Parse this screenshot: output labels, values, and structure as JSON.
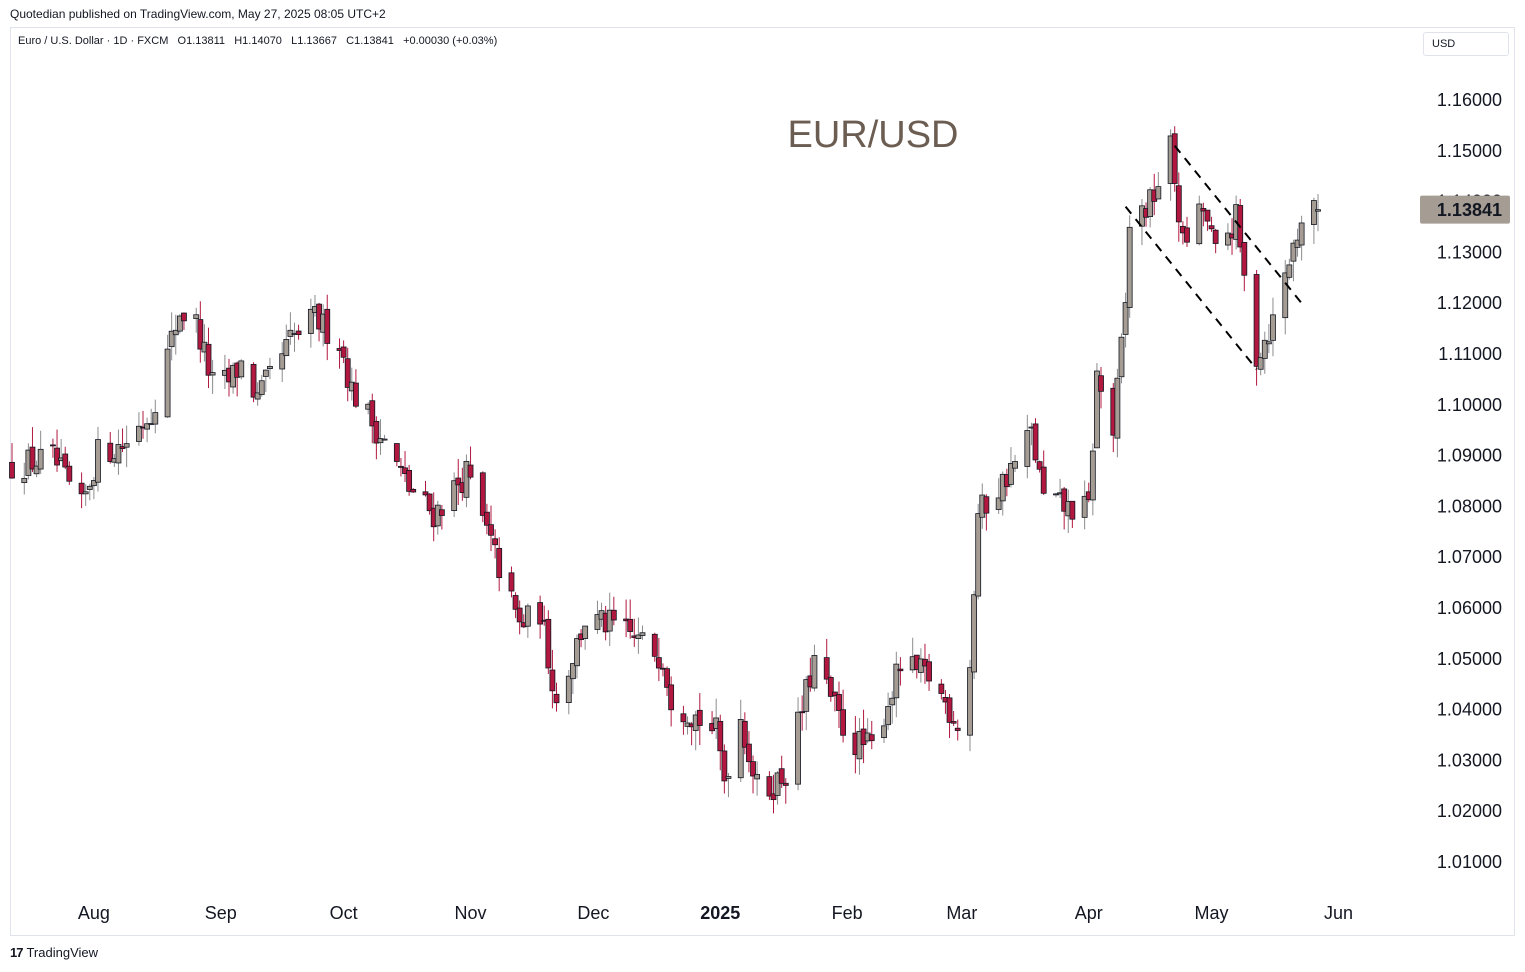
{
  "header": {
    "publisher_line": "Quotedian published on TradingView.com, May 27, 2025 08:05 UTC+2"
  },
  "legend": {
    "symbol": "Euro / U.S. Dollar · 1D · FXCM",
    "open": "O1.13811",
    "high": "H1.14070",
    "low": "L1.13667",
    "close": "C1.13841",
    "change": "+0.00030 (+0.03%)"
  },
  "currency_button": "USD",
  "footer": {
    "brand": "TradingView",
    "logo": "17"
  },
  "colors": {
    "up": "#a59c94",
    "down": "#b2183f",
    "outline": "#131722",
    "price_tag": "#a59c94",
    "title": "#6b5d52"
  },
  "chart_data": {
    "type": "candlestick",
    "title": "EUR/USD",
    "ylim": [
      1.003,
      1.17
    ],
    "y_ticks": [
      "1.16000",
      "1.15000",
      "1.13000",
      "1.12000",
      "1.11000",
      "1.10000",
      "1.09000",
      "1.08000",
      "1.07000",
      "1.06000",
      "1.05000",
      "1.04000",
      "1.03000",
      "1.02000",
      "1.01000"
    ],
    "x_labels": [
      {
        "label": "Aug",
        "date": "2024-08-01",
        "bold": false
      },
      {
        "label": "Sep",
        "date": "2024-09-01",
        "bold": false
      },
      {
        "label": "Oct",
        "date": "2024-10-01",
        "bold": false
      },
      {
        "label": "Nov",
        "date": "2024-11-01",
        "bold": false
      },
      {
        "label": "Dec",
        "date": "2024-12-01",
        "bold": false
      },
      {
        "label": "2025",
        "date": "2025-01-01",
        "bold": true
      },
      {
        "label": "Feb",
        "date": "2025-02-01",
        "bold": false
      },
      {
        "label": "Mar",
        "date": "2025-03-01",
        "bold": false
      },
      {
        "label": "Apr",
        "date": "2025-04-01",
        "bold": false
      },
      {
        "label": "May",
        "date": "2025-05-01",
        "bold": false
      },
      {
        "label": "Jun",
        "date": "2025-06-01",
        "bold": false
      }
    ],
    "last_price": "1.13841",
    "trend_lines": [
      {
        "from": [
          "2025-04-22",
          1.151
        ],
        "to": [
          "2025-05-23",
          1.12
        ]
      },
      {
        "from": [
          "2025-04-10",
          1.139
        ],
        "to": [
          "2025-05-12",
          1.107
        ]
      }
    ],
    "close_path": [
      [
        "2024-07-12",
        1.088
      ],
      [
        "2024-07-22",
        1.0895
      ],
      [
        "2024-07-29",
        1.0795
      ],
      [
        "2024-08-02",
        1.0905
      ],
      [
        "2024-08-08",
        1.092
      ],
      [
        "2024-08-15",
        1.0985
      ],
      [
        "2024-08-22",
        1.1185
      ],
      [
        "2024-08-26",
        1.116
      ],
      [
        "2024-08-30",
        1.104
      ],
      [
        "2024-09-03",
        1.1045
      ],
      [
        "2024-09-06",
        1.108
      ],
      [
        "2024-09-10",
        1.101
      ],
      [
        "2024-09-18",
        1.1125
      ],
      [
        "2024-09-24",
        1.117
      ],
      [
        "2024-09-30",
        1.1125
      ],
      [
        "2024-10-03",
        1.103
      ],
      [
        "2024-10-10",
        1.094
      ],
      [
        "2024-10-17",
        1.0835
      ],
      [
        "2024-10-23",
        1.0785
      ],
      [
        "2024-10-31",
        1.0865
      ],
      [
        "2024-11-06",
        1.0725
      ],
      [
        "2024-11-13",
        1.0565
      ],
      [
        "2024-11-18",
        1.0595
      ],
      [
        "2024-11-22",
        1.0415
      ],
      [
        "2024-11-29",
        1.0575
      ],
      [
        "2024-12-06",
        1.0565
      ],
      [
        "2024-12-18",
        1.0505
      ],
      [
        "2024-12-20",
        1.0425
      ],
      [
        "2024-12-31",
        1.0355
      ],
      [
        "2025-01-02",
        1.0265
      ],
      [
        "2025-01-06",
        1.0385
      ],
      [
        "2025-01-10",
        1.0245
      ],
      [
        "2025-01-13",
        1.0245
      ],
      [
        "2025-01-17",
        1.0275
      ],
      [
        "2025-01-24",
        1.0495
      ],
      [
        "2025-01-31",
        1.0365
      ],
      [
        "2025-02-03",
        1.0335
      ],
      [
        "2025-02-07",
        1.0325
      ],
      [
        "2025-02-14",
        1.0485
      ],
      [
        "2025-02-21",
        1.0465
      ],
      [
        "2025-02-28",
        1.0375
      ],
      [
        "2025-03-03",
        1.0485
      ],
      [
        "2025-03-05",
        1.0785
      ],
      [
        "2025-03-10",
        1.0835
      ],
      [
        "2025-03-14",
        1.0885
      ],
      [
        "2025-03-18",
        1.0945
      ],
      [
        "2025-03-21",
        1.0815
      ],
      [
        "2025-03-27",
        1.0795
      ],
      [
        "2025-04-01",
        1.0795
      ],
      [
        "2025-04-03",
        1.1055
      ],
      [
        "2025-04-07",
        1.0945
      ],
      [
        "2025-04-10",
        1.1195
      ],
      [
        "2025-04-11",
        1.1355
      ],
      [
        "2025-04-16",
        1.1395
      ],
      [
        "2025-04-21",
        1.1505
      ],
      [
        "2025-04-24",
        1.1315
      ],
      [
        "2025-04-29",
        1.1385
      ],
      [
        "2025-05-02",
        1.1295
      ],
      [
        "2025-05-07",
        1.1365
      ],
      [
        "2025-05-09",
        1.1245
      ],
      [
        "2025-05-12",
        1.1095
      ],
      [
        "2025-05-16",
        1.1165
      ],
      [
        "2025-05-20",
        1.1285
      ],
      [
        "2025-05-23",
        1.1365
      ],
      [
        "2025-05-27",
        1.1384
      ]
    ]
  }
}
